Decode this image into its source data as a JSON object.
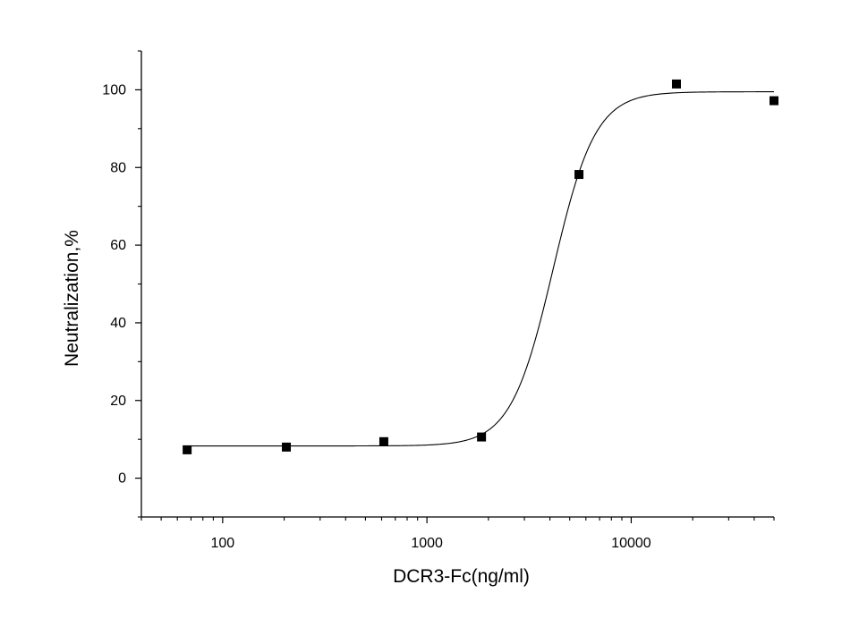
{
  "chart_data": {
    "type": "scatter",
    "title": "",
    "xlabel": "DCR3-Fc(ng/ml)",
    "ylabel": "Neutralization,%",
    "x_scale": "log",
    "xlim": [
      40,
      50000
    ],
    "ylim": [
      -10,
      110
    ],
    "x_ticks": [
      100,
      1000,
      10000
    ],
    "x_tick_labels": [
      "100",
      "1000",
      "10000"
    ],
    "y_ticks": [
      0,
      20,
      40,
      60,
      80,
      100
    ],
    "y_tick_labels": [
      "0",
      "20",
      "40",
      "60",
      "80",
      "100"
    ],
    "grid": false,
    "legend": "none",
    "series": [
      {
        "type": "scatter",
        "marker": "square",
        "color": "#000000",
        "points": [
          {
            "x": 67,
            "y": 7.3
          },
          {
            "x": 205,
            "y": 8.0
          },
          {
            "x": 615,
            "y": 9.4
          },
          {
            "x": 1850,
            "y": 10.6
          },
          {
            "x": 5550,
            "y": 78.2
          },
          {
            "x": 16650,
            "y": 101.5
          },
          {
            "x": 50000,
            "y": 97.2
          }
        ]
      },
      {
        "type": "line",
        "fit": "sigmoidal",
        "color": "#000000",
        "x_range": [
          67,
          50000
        ],
        "bottom": 8.3,
        "top": 99.5,
        "ec50": 4150,
        "hill": 4.2
      }
    ]
  }
}
